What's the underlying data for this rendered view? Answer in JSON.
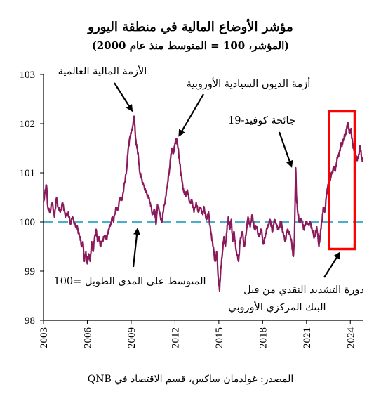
{
  "title": "مؤشر الأوضاع المالية في منطقة اليورو",
  "subtitle": "(المؤشر، 100 = المتوسط منذ عام 2000)",
  "source": "المصدر: غولدمان ساكس، قسم الاقتصاد في QNB",
  "colors": {
    "series": "#8B1A5C",
    "average": "#4BAFC9",
    "highlight": "#FF0000",
    "arrow": "#000000"
  },
  "chart_data": {
    "type": "line",
    "title": "مؤشر الأوضاع المالية في منطقة اليورو",
    "subtitle": "(المؤشر، 100 = المتوسط منذ عام 2000)",
    "xlabel": "",
    "ylabel": "",
    "xlim": [
      2003,
      2024.9
    ],
    "ylim": [
      98,
      103
    ],
    "yticks": [
      "98",
      "99",
      "100",
      "101",
      "102",
      "103"
    ],
    "xticks": [
      "2003",
      "2006",
      "2009",
      "2012",
      "2015",
      "2018",
      "2021",
      "2024"
    ],
    "grid": false,
    "series": [
      {
        "values": [
          [
            2003.0,
            100.4
          ],
          [
            2003.1,
            100.6
          ],
          [
            2003.2,
            100.75
          ],
          [
            2003.3,
            100.3
          ],
          [
            2003.45,
            100.2
          ],
          [
            2003.6,
            100.4
          ],
          [
            2003.75,
            100.1
          ],
          [
            2003.9,
            100.5
          ],
          [
            2004.0,
            100.3
          ],
          [
            2004.15,
            100.2
          ],
          [
            2004.3,
            100.4
          ],
          [
            2004.5,
            100.1
          ],
          [
            2004.7,
            100.2
          ],
          [
            2004.85,
            99.95
          ],
          [
            2005.0,
            100.1
          ],
          [
            2005.2,
            99.9
          ],
          [
            2005.35,
            99.85
          ],
          [
            2005.5,
            99.7
          ],
          [
            2005.6,
            99.5
          ],
          [
            2005.7,
            99.6
          ],
          [
            2005.8,
            99.2
          ],
          [
            2005.9,
            99.4
          ],
          [
            2006.0,
            99.15
          ],
          [
            2006.1,
            99.35
          ],
          [
            2006.2,
            99.2
          ],
          [
            2006.3,
            99.6
          ],
          [
            2006.4,
            99.4
          ],
          [
            2006.5,
            99.7
          ],
          [
            2006.6,
            99.85
          ],
          [
            2006.7,
            99.6
          ],
          [
            2006.8,
            99.7
          ],
          [
            2006.9,
            99.5
          ],
          [
            2007.0,
            99.6
          ],
          [
            2007.15,
            99.7
          ],
          [
            2007.3,
            99.65
          ],
          [
            2007.45,
            99.85
          ],
          [
            2007.6,
            99.95
          ],
          [
            2007.7,
            100.1
          ],
          [
            2007.8,
            100.0
          ],
          [
            2007.95,
            100.3
          ],
          [
            2008.1,
            100.25
          ],
          [
            2008.25,
            100.5
          ],
          [
            2008.4,
            100.45
          ],
          [
            2008.55,
            100.8
          ],
          [
            2008.7,
            101.1
          ],
          [
            2008.8,
            101.5
          ],
          [
            2008.9,
            101.7
          ],
          [
            2009.0,
            101.8
          ],
          [
            2009.1,
            101.95
          ],
          [
            2009.2,
            102.15
          ],
          [
            2009.3,
            101.7
          ],
          [
            2009.4,
            101.5
          ],
          [
            2009.5,
            101.3
          ],
          [
            2009.6,
            101.0
          ],
          [
            2009.7,
            100.9
          ],
          [
            2009.85,
            100.75
          ],
          [
            2010.0,
            100.6
          ],
          [
            2010.15,
            100.55
          ],
          [
            2010.3,
            100.4
          ],
          [
            2010.45,
            100.15
          ],
          [
            2010.6,
            100.25
          ],
          [
            2010.7,
            99.95
          ],
          [
            2010.8,
            100.35
          ],
          [
            2010.95,
            100.2
          ],
          [
            2011.1,
            100.0
          ],
          [
            2011.2,
            100.2
          ],
          [
            2011.35,
            100.5
          ],
          [
            2011.5,
            100.8
          ],
          [
            2011.6,
            101.0
          ],
          [
            2011.7,
            101.3
          ],
          [
            2011.8,
            101.5
          ],
          [
            2011.9,
            101.4
          ],
          [
            2012.0,
            101.6
          ],
          [
            2012.1,
            101.7
          ],
          [
            2012.2,
            101.5
          ],
          [
            2012.3,
            101.3
          ],
          [
            2012.4,
            101.0
          ],
          [
            2012.5,
            100.8
          ],
          [
            2012.6,
            100.6
          ],
          [
            2012.7,
            100.55
          ],
          [
            2012.85,
            100.65
          ],
          [
            2013.0,
            100.4
          ],
          [
            2013.15,
            100.45
          ],
          [
            2013.3,
            100.2
          ],
          [
            2013.45,
            100.4
          ],
          [
            2013.6,
            100.2
          ],
          [
            2013.75,
            100.3
          ],
          [
            2013.9,
            100.15
          ],
          [
            2014.0,
            100.3
          ],
          [
            2014.15,
            100.05
          ],
          [
            2014.3,
            100.2
          ],
          [
            2014.45,
            99.8
          ],
          [
            2014.6,
            99.5
          ],
          [
            2014.75,
            99.2
          ],
          [
            2014.85,
            99.4
          ],
          [
            2014.95,
            98.9
          ],
          [
            2015.05,
            98.6
          ],
          [
            2015.15,
            99.1
          ],
          [
            2015.25,
            99.4
          ],
          [
            2015.35,
            99.7
          ],
          [
            2015.45,
            99.5
          ],
          [
            2015.55,
            99.8
          ],
          [
            2015.65,
            100.1
          ],
          [
            2015.75,
            99.85
          ],
          [
            2015.85,
            100.05
          ],
          [
            2015.95,
            99.6
          ],
          [
            2016.05,
            99.8
          ],
          [
            2016.2,
            99.4
          ],
          [
            2016.35,
            99.2
          ],
          [
            2016.45,
            99.6
          ],
          [
            2016.6,
            99.8
          ],
          [
            2016.75,
            99.5
          ],
          [
            2016.9,
            99.85
          ],
          [
            2017.0,
            100.1
          ],
          [
            2017.15,
            99.9
          ],
          [
            2017.3,
            100.15
          ],
          [
            2017.45,
            99.85
          ],
          [
            2017.6,
            99.9
          ],
          [
            2017.75,
            99.7
          ],
          [
            2017.9,
            99.85
          ],
          [
            2018.05,
            99.55
          ],
          [
            2018.2,
            99.75
          ],
          [
            2018.35,
            99.9
          ],
          [
            2018.5,
            100.05
          ],
          [
            2018.65,
            99.8
          ],
          [
            2018.8,
            100.05
          ],
          [
            2018.95,
            99.95
          ],
          [
            2019.1,
            99.85
          ],
          [
            2019.25,
            100.0
          ],
          [
            2019.4,
            99.8
          ],
          [
            2019.55,
            99.6
          ],
          [
            2019.7,
            99.85
          ],
          [
            2019.85,
            99.75
          ],
          [
            2020.0,
            99.55
          ],
          [
            2020.1,
            99.3
          ],
          [
            2020.17,
            99.6
          ],
          [
            2020.22,
            100.4
          ],
          [
            2020.26,
            101.1
          ],
          [
            2020.32,
            100.5
          ],
          [
            2020.4,
            100.2
          ],
          [
            2020.5,
            100.0
          ],
          [
            2020.65,
            100.05
          ],
          [
            2020.8,
            99.85
          ],
          [
            2020.95,
            100.0
          ],
          [
            2021.1,
            99.95
          ],
          [
            2021.25,
            100.0
          ],
          [
            2021.4,
            99.8
          ],
          [
            2021.55,
            99.7
          ],
          [
            2021.7,
            99.9
          ],
          [
            2021.85,
            99.5
          ],
          [
            2021.95,
            99.75
          ],
          [
            2022.05,
            100.0
          ],
          [
            2022.15,
            100.3
          ],
          [
            2022.25,
            100.2
          ],
          [
            2022.35,
            100.5
          ],
          [
            2022.45,
            100.7
          ],
          [
            2022.55,
            100.75
          ],
          [
            2022.65,
            100.9
          ],
          [
            2022.75,
            101.0
          ],
          [
            2022.85,
            101.1
          ],
          [
            2022.95,
            101.05
          ],
          [
            2023.05,
            101.2
          ],
          [
            2023.15,
            101.35
          ],
          [
            2023.25,
            101.4
          ],
          [
            2023.35,
            101.55
          ],
          [
            2023.45,
            101.6
          ],
          [
            2023.55,
            101.7
          ],
          [
            2023.65,
            101.75
          ],
          [
            2023.75,
            101.9
          ],
          [
            2023.85,
            102.0
          ],
          [
            2023.95,
            101.8
          ],
          [
            2024.05,
            101.9
          ],
          [
            2024.15,
            101.6
          ],
          [
            2024.25,
            101.45
          ],
          [
            2024.35,
            101.4
          ],
          [
            2024.45,
            101.25
          ],
          [
            2024.55,
            101.3
          ],
          [
            2024.65,
            101.55
          ],
          [
            2024.75,
            101.35
          ],
          [
            2024.85,
            101.25
          ]
        ]
      }
    ],
    "reference_line": {
      "value": 100,
      "label": "المتوسط على المدى الطويل =100"
    },
    "annotations": [
      {
        "text": "الأزمة المالية العالمية",
        "target": [
          2009.2,
          102.15
        ]
      },
      {
        "text": "أزمة الديون السيادية الأوروبية",
        "target": [
          2012.0,
          101.7
        ]
      },
      {
        "text": "جائحة كوفيد-19",
        "target": [
          2020.26,
          101.1
        ]
      },
      {
        "text": "المتوسط على المدى الطويل =100",
        "target": [
          2009.0,
          100.0
        ]
      },
      {
        "lines": [
          "دورة التشديد النقدي من قبل",
          "البنك المركزي الأوروبي"
        ],
        "target": [
          2023.3,
          99.4
        ]
      }
    ],
    "highlight_box": {
      "x": [
        2022.55,
        2024.3
      ],
      "y": [
        99.45,
        102.25
      ]
    }
  }
}
